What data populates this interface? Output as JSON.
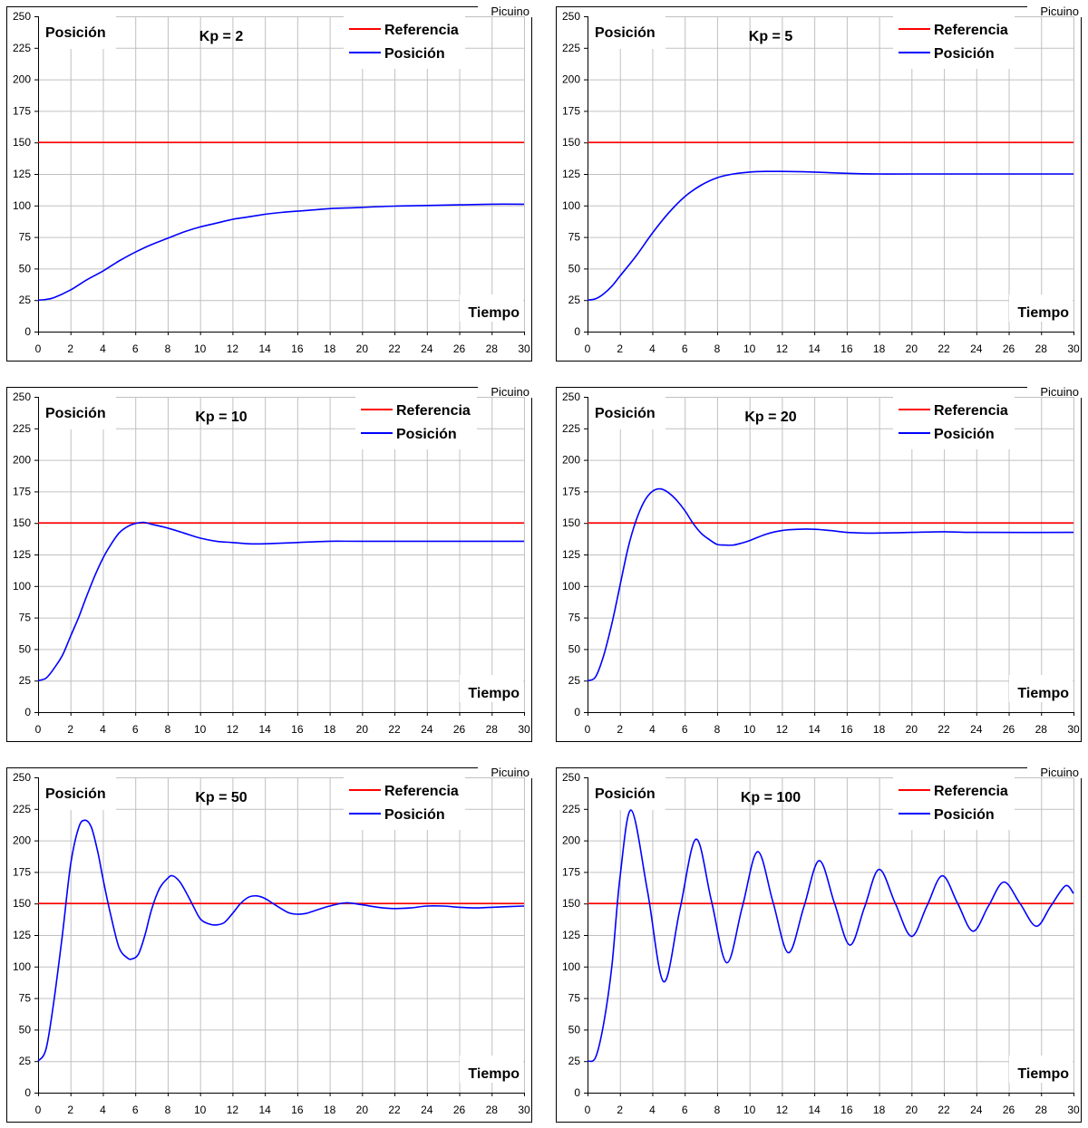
{
  "chart_data": [
    {
      "type": "line",
      "title": "Kp = 2",
      "ylabel": "Posición",
      "xlabel": "Tiempo",
      "watermark": "Picuino",
      "xlim": [
        0,
        30
      ],
      "ylim": [
        0,
        250
      ],
      "xticks": [
        0,
        2,
        4,
        6,
        8,
        10,
        12,
        14,
        16,
        18,
        20,
        22,
        24,
        26,
        28,
        30
      ],
      "yticks": [
        0,
        25,
        50,
        75,
        100,
        125,
        150,
        175,
        200,
        225,
        250
      ],
      "grid": true,
      "legend": "top-right",
      "series": [
        {
          "name": "Referencia",
          "color": "#ff0000",
          "x": [
            0,
            30
          ],
          "y": [
            150,
            150
          ]
        },
        {
          "name": "Posición",
          "color": "#0000ff",
          "x": [
            0,
            0.5,
            1,
            2,
            3,
            4,
            5,
            6,
            7,
            8,
            9,
            10,
            11,
            12,
            13,
            14,
            15,
            16,
            17,
            18,
            19,
            20,
            22,
            24,
            26,
            28,
            30
          ],
          "y": [
            25,
            25.5,
            27,
            33,
            41,
            48,
            56,
            63,
            69,
            74,
            79,
            83,
            86,
            89,
            91,
            93,
            94.5,
            95.5,
            96.5,
            97.5,
            98,
            98.5,
            99.5,
            100,
            100.5,
            101,
            101
          ]
        }
      ]
    },
    {
      "type": "line",
      "title": "Kp = 5",
      "ylabel": "Posición",
      "xlabel": "Tiempo",
      "watermark": "Picuino",
      "xlim": [
        0,
        30
      ],
      "ylim": [
        0,
        250
      ],
      "xticks": [
        0,
        2,
        4,
        6,
        8,
        10,
        12,
        14,
        16,
        18,
        20,
        22,
        24,
        26,
        28,
        30
      ],
      "yticks": [
        0,
        25,
        50,
        75,
        100,
        125,
        150,
        175,
        200,
        225,
        250
      ],
      "grid": true,
      "legend": "top-right",
      "series": [
        {
          "name": "Referencia",
          "color": "#ff0000",
          "x": [
            0,
            30
          ],
          "y": [
            150,
            150
          ]
        },
        {
          "name": "Posición",
          "color": "#0000ff",
          "x": [
            0,
            0.5,
            1,
            1.5,
            2,
            3,
            4,
            5,
            6,
            7,
            8,
            9,
            10,
            11,
            12,
            14,
            16,
            18,
            20,
            30
          ],
          "y": [
            25,
            26,
            30,
            36,
            44,
            60,
            78,
            94,
            107,
            116,
            122,
            125,
            126.5,
            127,
            127,
            126.5,
            125.5,
            125,
            125,
            125
          ]
        }
      ]
    },
    {
      "type": "line",
      "title": "Kp = 10",
      "ylabel": "Posición",
      "xlabel": "Tiempo",
      "watermark": "Picuino",
      "xlim": [
        0,
        30
      ],
      "ylim": [
        0,
        250
      ],
      "xticks": [
        0,
        2,
        4,
        6,
        8,
        10,
        12,
        14,
        16,
        18,
        20,
        22,
        24,
        26,
        28,
        30
      ],
      "yticks": [
        0,
        25,
        50,
        75,
        100,
        125,
        150,
        175,
        200,
        225,
        250
      ],
      "grid": true,
      "legend": "top-right",
      "series": [
        {
          "name": "Referencia",
          "color": "#ff0000",
          "x": [
            0,
            30
          ],
          "y": [
            150,
            150
          ]
        },
        {
          "name": "Posición",
          "color": "#0000ff",
          "x": [
            0,
            0.5,
            1,
            1.5,
            2,
            2.5,
            3,
            3.5,
            4,
            4.5,
            5,
            5.5,
            6,
            6.5,
            7,
            8,
            9,
            10,
            11,
            12,
            13,
            14,
            16,
            18,
            20,
            30
          ],
          "y": [
            25,
            27,
            35,
            45,
            60,
            75,
            92,
            108,
            122,
            133,
            142,
            147,
            149.5,
            150.5,
            149,
            146,
            142,
            138,
            135.5,
            134.5,
            133.5,
            133.5,
            134.5,
            135.5,
            135.5,
            135.5
          ]
        }
      ]
    },
    {
      "type": "line",
      "title": "Kp = 20",
      "ylabel": "Posición",
      "xlabel": "Tiempo",
      "watermark": "Picuino",
      "xlim": [
        0,
        30
      ],
      "ylim": [
        0,
        250
      ],
      "xticks": [
        0,
        2,
        4,
        6,
        8,
        10,
        12,
        14,
        16,
        18,
        20,
        22,
        24,
        26,
        28,
        30
      ],
      "yticks": [
        0,
        25,
        50,
        75,
        100,
        125,
        150,
        175,
        200,
        225,
        250
      ],
      "grid": true,
      "legend": "top-right",
      "series": [
        {
          "name": "Referencia",
          "color": "#ff0000",
          "x": [
            0,
            30
          ],
          "y": [
            150,
            150
          ]
        },
        {
          "name": "Posición",
          "color": "#0000ff",
          "x": [
            0,
            0.5,
            1,
            1.5,
            2,
            2.5,
            3,
            3.5,
            4,
            4.5,
            5,
            5.5,
            6,
            6.5,
            7,
            7.5,
            8,
            8.5,
            9,
            9.5,
            10,
            11,
            12,
            13,
            14,
            15,
            16,
            17,
            18,
            20,
            22,
            24,
            30
          ],
          "y": [
            25,
            28,
            45,
            70,
            100,
            130,
            152,
            167,
            175,
            177,
            174,
            168,
            160,
            150,
            142,
            137,
            133,
            132.5,
            132.5,
            134,
            136,
            141,
            144,
            145,
            145,
            144,
            142.5,
            142,
            142,
            142.5,
            143,
            142.5,
            142.5
          ]
        }
      ]
    },
    {
      "type": "line",
      "title": "Kp = 50",
      "ylabel": "Posición",
      "xlabel": "Tiempo",
      "watermark": "Picuino",
      "xlim": [
        0,
        30
      ],
      "ylim": [
        0,
        250
      ],
      "xticks": [
        0,
        2,
        4,
        6,
        8,
        10,
        12,
        14,
        16,
        18,
        20,
        22,
        24,
        26,
        28,
        30
      ],
      "yticks": [
        0,
        25,
        50,
        75,
        100,
        125,
        150,
        175,
        200,
        225,
        250
      ],
      "grid": true,
      "legend": "top-right",
      "series": [
        {
          "name": "Referencia",
          "color": "#ff0000",
          "x": [
            0,
            30
          ],
          "y": [
            150,
            150
          ]
        },
        {
          "name": "Posición",
          "color": "#0000ff",
          "x": [
            0,
            0.5,
            1,
            1.5,
            2,
            2.5,
            2.9,
            3.3,
            3.7,
            4,
            4.5,
            5,
            5.5,
            5.8,
            6.2,
            6.6,
            7,
            7.5,
            8,
            8.3,
            8.7,
            9,
            9.5,
            10,
            10.5,
            11,
            11.5,
            12,
            12.5,
            13,
            13.5,
            14,
            14.5,
            15,
            15.5,
            16,
            16.5,
            17,
            18,
            19,
            20,
            21,
            22,
            23,
            24,
            25,
            26,
            27,
            28,
            30
          ],
          "y": [
            25,
            35,
            75,
            125,
            180,
            210,
            216,
            210,
            190,
            170,
            140,
            115,
            107,
            106,
            110,
            125,
            145,
            162,
            170,
            172,
            168,
            162,
            150,
            138,
            134,
            133,
            135,
            142,
            150,
            155,
            156,
            154,
            150,
            146,
            142.5,
            141.5,
            142,
            144,
            148,
            150.5,
            149,
            147,
            146,
            146.5,
            148,
            148,
            147,
            146.5,
            147,
            148
          ]
        }
      ]
    },
    {
      "type": "line",
      "title": "Kp = 100",
      "ylabel": "Posición",
      "xlabel": "Tiempo",
      "watermark": "Picuino",
      "xlim": [
        0,
        30
      ],
      "ylim": [
        0,
        250
      ],
      "xticks": [
        0,
        2,
        4,
        6,
        8,
        10,
        12,
        14,
        16,
        18,
        20,
        22,
        24,
        26,
        28,
        30
      ],
      "yticks": [
        0,
        25,
        50,
        75,
        100,
        125,
        150,
        175,
        200,
        225,
        250
      ],
      "grid": true,
      "legend": "top-right",
      "series": [
        {
          "name": "Referencia",
          "color": "#ff0000",
          "x": [
            0,
            30
          ],
          "y": [
            150,
            150
          ]
        },
        {
          "name": "Posición",
          "color": "#0000ff",
          "x": [
            0,
            0.5,
            1,
            1.5,
            2,
            2.7,
            3.7,
            4.7,
            5.7,
            6.7,
            7.65,
            8.6,
            9.55,
            10.5,
            11.45,
            12.4,
            13.35,
            14.3,
            15.25,
            16.2,
            17.1,
            18,
            19,
            20,
            20.95,
            21.9,
            22.85,
            23.8,
            24.75,
            25.7,
            26.7,
            27.7,
            28.6,
            29.5,
            30
          ],
          "y": [
            25,
            28,
            55,
            100,
            170,
            224,
            160,
            88,
            145,
            201,
            152,
            103,
            147,
            191,
            151,
            111,
            147,
            184,
            150,
            117,
            147,
            177,
            150,
            124,
            148,
            172,
            150,
            128,
            148,
            167,
            150,
            132,
            148,
            164,
            158
          ]
        }
      ]
    }
  ]
}
